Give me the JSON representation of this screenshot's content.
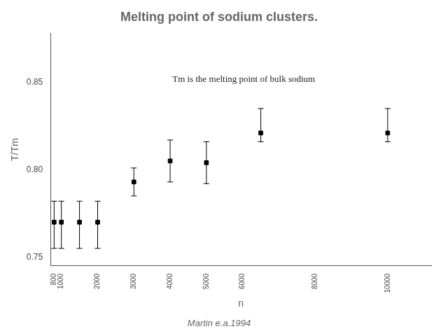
{
  "chart_data": {
    "type": "scatter",
    "title": "Melting point of sodium clusters.",
    "x_label": "n",
    "y_label": "T/Tm",
    "annotation": "Tm is the melting point of bulk sodium",
    "citation": "Martin e.a.1994",
    "x": [
      800,
      1000,
      1500,
      2000,
      3000,
      4000,
      5000,
      6500,
      10000
    ],
    "values": [
      0.77,
      0.77,
      0.77,
      0.77,
      0.793,
      0.805,
      0.804,
      0.821,
      0.821
    ],
    "y_err_upper": [
      0.012,
      0.012,
      0.012,
      0.012,
      0.008,
      0.012,
      0.012,
      0.014,
      0.014
    ],
    "y_err_lower": [
      0.015,
      0.015,
      0.015,
      0.015,
      0.008,
      0.012,
      0.012,
      0.005,
      0.005
    ],
    "color": "#000000",
    "marker": "square",
    "xlim": [
      700,
      11200
    ],
    "ylim": [
      0.745,
      0.878
    ],
    "xticks": [
      800,
      1000,
      2000,
      3000,
      4000,
      5000,
      6000,
      8000,
      10000
    ],
    "yticks": [
      0.75,
      {
        "value": 0.8,
        "label": "0.80"
      },
      0.85
    ],
    "grid": false
  }
}
